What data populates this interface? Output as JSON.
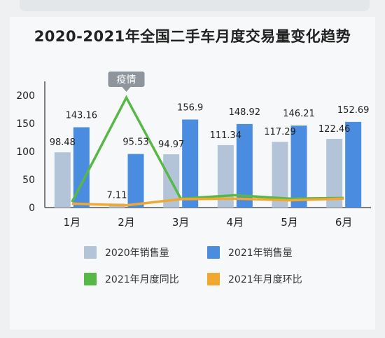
{
  "chart_data": {
    "type": "bar",
    "title": "2020-2021年全国二手车月度交易量变化趋势",
    "categories": [
      "1月",
      "2月",
      "3月",
      "4月",
      "5月",
      "6月"
    ],
    "ylim": [
      0,
      220
    ],
    "yticks": [
      0,
      50,
      100,
      150,
      200
    ],
    "series": [
      {
        "name": "2020年销售量",
        "kind": "bar",
        "color": "#b3c4d8",
        "values": [
          98.48,
          7.11,
          94.97,
          111.34,
          117.29,
          122.46
        ],
        "labels": [
          "98.48",
          "7.11",
          "94.97",
          "111.34",
          "117.29",
          "122.46"
        ]
      },
      {
        "name": "2021年销售量",
        "kind": "bar",
        "color": "#4a8de0",
        "values": [
          143.16,
          95.53,
          156.9,
          148.92,
          146.21,
          152.69
        ],
        "labels": [
          "143.16",
          "95.53",
          "156.9",
          "148.92",
          "146.21",
          "152.69"
        ]
      },
      {
        "name": "2021年月度同比",
        "kind": "line",
        "color": "#57b847",
        "values": [
          10,
          196,
          16,
          22,
          16,
          17
        ]
      },
      {
        "name": "2021年月度环比",
        "kind": "line",
        "color": "#f0a830",
        "values": [
          7,
          4,
          15,
          16,
          13,
          16
        ]
      }
    ],
    "annotation": {
      "text": "疫情",
      "category": "2月"
    }
  }
}
